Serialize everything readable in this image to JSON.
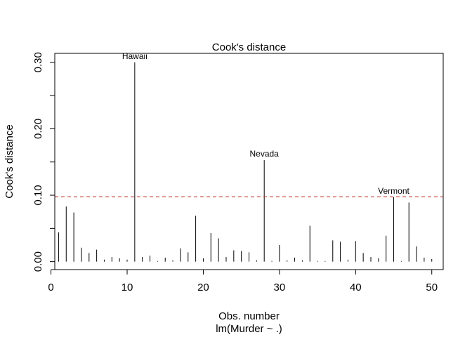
{
  "chart_data": {
    "type": "bar",
    "title": "Cook's distance",
    "xlabel": "Obs. number",
    "sublabel": "lm(Murder ~ .)",
    "ylabel": "Cook's distance",
    "xlim": [
      0.5,
      51.5
    ],
    "ylim": [
      -0.012,
      0.3135
    ],
    "x_ticks": [
      0,
      10,
      20,
      30,
      40,
      50
    ],
    "x_tick_labels": [
      "0",
      "10",
      "20",
      "30",
      "40",
      "50"
    ],
    "y_ticks": [
      0.0,
      0.1,
      0.2,
      0.3
    ],
    "y_tick_labels": [
      "0.00",
      "0.10",
      "0.20",
      "0.30"
    ],
    "y_minor_ticks": [
      0.05,
      0.15,
      0.25
    ],
    "threshold": {
      "value": 0.0976,
      "color": "#c0392b",
      "style": "dashed"
    },
    "x": [
      1,
      2,
      3,
      4,
      5,
      6,
      7,
      8,
      9,
      10,
      11,
      12,
      13,
      14,
      15,
      16,
      17,
      18,
      19,
      20,
      21,
      22,
      23,
      24,
      25,
      26,
      27,
      28,
      29,
      30,
      31,
      32,
      33,
      34,
      35,
      36,
      37,
      38,
      39,
      40,
      41,
      42,
      43,
      44,
      45,
      46,
      47,
      48,
      49,
      50
    ],
    "values": [
      0.044,
      0.083,
      0.074,
      0.021,
      0.013,
      0.018,
      0.003,
      0.007,
      0.005,
      0.003,
      0.3,
      0.007,
      0.009,
      0.001,
      0.006,
      0.002,
      0.02,
      0.014,
      0.069,
      0.005,
      0.043,
      0.035,
      0.007,
      0.017,
      0.016,
      0.014,
      0.002,
      0.153,
      0.001,
      0.025,
      0.002,
      0.006,
      0.002,
      0.054,
      0.001,
      0.001,
      0.032,
      0.03,
      0.003,
      0.031,
      0.013,
      0.007,
      0.005,
      0.039,
      0.097,
      0.001,
      0.089,
      0.023,
      0.006,
      0.004
    ],
    "annotations": [
      {
        "label": "Hawaii",
        "x": 11,
        "y": 0.3
      },
      {
        "label": "Nevada",
        "x": 28,
        "y": 0.153
      },
      {
        "label": "Vermont",
        "x": 45,
        "y": 0.097
      }
    ],
    "colors": {
      "bars": "#000000",
      "axes": "#000000"
    }
  }
}
